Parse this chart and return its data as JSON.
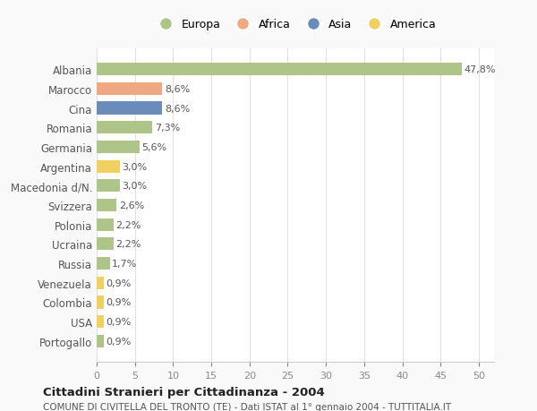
{
  "countries": [
    "Albania",
    "Marocco",
    "Cina",
    "Romania",
    "Germania",
    "Argentina",
    "Macedonia d/N.",
    "Svizzera",
    "Polonia",
    "Ucraina",
    "Russia",
    "Venezuela",
    "Colombia",
    "USA",
    "Portogallo"
  ],
  "values": [
    47.8,
    8.6,
    8.6,
    7.3,
    5.6,
    3.0,
    3.0,
    2.6,
    2.2,
    2.2,
    1.7,
    0.9,
    0.9,
    0.9,
    0.9
  ],
  "labels": [
    "47,8%",
    "8,6%",
    "8,6%",
    "7,3%",
    "5,6%",
    "3,0%",
    "3,0%",
    "2,6%",
    "2,2%",
    "2,2%",
    "1,7%",
    "0,9%",
    "0,9%",
    "0,9%",
    "0,9%"
  ],
  "categories": [
    "Europa",
    "Africa",
    "Asia",
    "Europa",
    "Europa",
    "America",
    "Europa",
    "Europa",
    "Europa",
    "Europa",
    "Europa",
    "America",
    "America",
    "America",
    "Europa"
  ],
  "colors": {
    "Europa": "#aec489",
    "Africa": "#f0a882",
    "Asia": "#6b8cba",
    "America": "#f0d060"
  },
  "legend_order": [
    "Europa",
    "Africa",
    "Asia",
    "America"
  ],
  "title": "Cittadini Stranieri per Cittadinanza - 2004",
  "subtitle": "COMUNE DI CIVITELLA DEL TRONTO (TE) - Dati ISTAT al 1° gennaio 2004 - TUTTITALIA.IT",
  "xlim": [
    0,
    52
  ],
  "xticks": [
    0,
    5,
    10,
    15,
    20,
    25,
    30,
    35,
    40,
    45,
    50
  ],
  "background_color": "#f9f9f9",
  "plot_background": "#ffffff",
  "grid_color": "#e0e0e0"
}
